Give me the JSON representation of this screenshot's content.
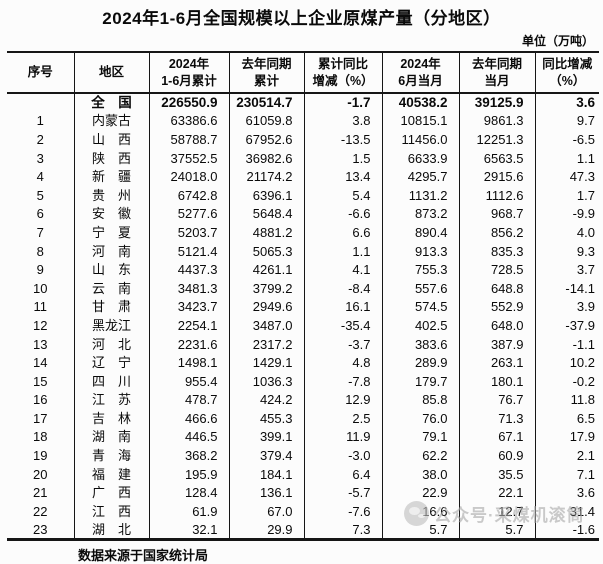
{
  "page": {
    "title": "2024年1-6月全国规模以上企业原煤产量（分地区）",
    "unit_label": "单位（万吨）",
    "source_note": "数据来源于国家统计局"
  },
  "watermark": {
    "icon": "official-account-badge-icon",
    "text": "公众号·采煤机滚筒"
  },
  "table": {
    "headers": [
      "序号",
      "地区",
      "2024年\n1-6月累计",
      "去年同期\n累计",
      "累计同比\n增减（%）",
      "2024年\n6月当月",
      "去年同期\n当月",
      "同比增减\n（%）"
    ],
    "total_row": {
      "no": "",
      "region": "全　国",
      "ytd_2024": "226550.9",
      "ytd_prev": "230514.7",
      "ytd_yoy": "-1.7",
      "jun_2024": "40538.2",
      "jun_prev": "39125.9",
      "jun_yoy": "3.6"
    },
    "rows": [
      {
        "no": "1",
        "region": "内蒙古",
        "ytd_2024": "63386.6",
        "ytd_prev": "61059.8",
        "ytd_yoy": "3.8",
        "jun_2024": "10815.1",
        "jun_prev": "9861.3",
        "jun_yoy": "9.7"
      },
      {
        "no": "2",
        "region": "山　西",
        "ytd_2024": "58788.7",
        "ytd_prev": "67952.6",
        "ytd_yoy": "-13.5",
        "jun_2024": "11456.0",
        "jun_prev": "12251.3",
        "jun_yoy": "-6.5"
      },
      {
        "no": "3",
        "region": "陕　西",
        "ytd_2024": "37552.5",
        "ytd_prev": "36982.6",
        "ytd_yoy": "1.5",
        "jun_2024": "6633.9",
        "jun_prev": "6563.5",
        "jun_yoy": "1.1"
      },
      {
        "no": "4",
        "region": "新　疆",
        "ytd_2024": "24018.0",
        "ytd_prev": "21174.2",
        "ytd_yoy": "13.4",
        "jun_2024": "4295.7",
        "jun_prev": "2915.6",
        "jun_yoy": "47.3"
      },
      {
        "no": "5",
        "region": "贵　州",
        "ytd_2024": "6742.8",
        "ytd_prev": "6396.1",
        "ytd_yoy": "5.4",
        "jun_2024": "1131.2",
        "jun_prev": "1112.6",
        "jun_yoy": "1.7"
      },
      {
        "no": "6",
        "region": "安　徽",
        "ytd_2024": "5277.6",
        "ytd_prev": "5648.4",
        "ytd_yoy": "-6.6",
        "jun_2024": "873.2",
        "jun_prev": "968.7",
        "jun_yoy": "-9.9"
      },
      {
        "no": "7",
        "region": "宁　夏",
        "ytd_2024": "5203.7",
        "ytd_prev": "4881.2",
        "ytd_yoy": "6.6",
        "jun_2024": "890.4",
        "jun_prev": "856.2",
        "jun_yoy": "4.0"
      },
      {
        "no": "8",
        "region": "河　南",
        "ytd_2024": "5121.4",
        "ytd_prev": "5065.3",
        "ytd_yoy": "1.1",
        "jun_2024": "913.3",
        "jun_prev": "835.3",
        "jun_yoy": "9.3"
      },
      {
        "no": "9",
        "region": "山　东",
        "ytd_2024": "4437.3",
        "ytd_prev": "4261.1",
        "ytd_yoy": "4.1",
        "jun_2024": "755.3",
        "jun_prev": "728.5",
        "jun_yoy": "3.7"
      },
      {
        "no": "10",
        "region": "云　南",
        "ytd_2024": "3481.3",
        "ytd_prev": "3799.2",
        "ytd_yoy": "-8.4",
        "jun_2024": "557.6",
        "jun_prev": "648.8",
        "jun_yoy": "-14.1"
      },
      {
        "no": "11",
        "region": "甘　肃",
        "ytd_2024": "3423.7",
        "ytd_prev": "2949.6",
        "ytd_yoy": "16.1",
        "jun_2024": "574.5",
        "jun_prev": "552.9",
        "jun_yoy": "3.9"
      },
      {
        "no": "12",
        "region": "黑龙江",
        "ytd_2024": "2254.1",
        "ytd_prev": "3487.0",
        "ytd_yoy": "-35.4",
        "jun_2024": "402.5",
        "jun_prev": "648.0",
        "jun_yoy": "-37.9"
      },
      {
        "no": "13",
        "region": "河　北",
        "ytd_2024": "2231.6",
        "ytd_prev": "2317.2",
        "ytd_yoy": "-3.7",
        "jun_2024": "383.6",
        "jun_prev": "387.9",
        "jun_yoy": "-1.1"
      },
      {
        "no": "14",
        "region": "辽　宁",
        "ytd_2024": "1498.1",
        "ytd_prev": "1429.1",
        "ytd_yoy": "4.8",
        "jun_2024": "289.9",
        "jun_prev": "263.1",
        "jun_yoy": "10.2"
      },
      {
        "no": "15",
        "region": "四　川",
        "ytd_2024": "955.4",
        "ytd_prev": "1036.3",
        "ytd_yoy": "-7.8",
        "jun_2024": "179.7",
        "jun_prev": "180.1",
        "jun_yoy": "-0.2"
      },
      {
        "no": "16",
        "region": "江　苏",
        "ytd_2024": "478.7",
        "ytd_prev": "424.2",
        "ytd_yoy": "12.9",
        "jun_2024": "85.8",
        "jun_prev": "76.7",
        "jun_yoy": "11.8"
      },
      {
        "no": "17",
        "region": "吉　林",
        "ytd_2024": "466.6",
        "ytd_prev": "455.3",
        "ytd_yoy": "2.5",
        "jun_2024": "76.0",
        "jun_prev": "71.3",
        "jun_yoy": "6.5"
      },
      {
        "no": "18",
        "region": "湖　南",
        "ytd_2024": "446.5",
        "ytd_prev": "399.1",
        "ytd_yoy": "11.9",
        "jun_2024": "79.1",
        "jun_prev": "67.1",
        "jun_yoy": "17.9"
      },
      {
        "no": "19",
        "region": "青　海",
        "ytd_2024": "368.2",
        "ytd_prev": "379.4",
        "ytd_yoy": "-3.0",
        "jun_2024": "62.2",
        "jun_prev": "60.9",
        "jun_yoy": "2.1"
      },
      {
        "no": "20",
        "region": "福　建",
        "ytd_2024": "195.9",
        "ytd_prev": "184.1",
        "ytd_yoy": "6.4",
        "jun_2024": "38.0",
        "jun_prev": "35.5",
        "jun_yoy": "7.1"
      },
      {
        "no": "21",
        "region": "广　西",
        "ytd_2024": "128.4",
        "ytd_prev": "136.1",
        "ytd_yoy": "-5.7",
        "jun_2024": "22.9",
        "jun_prev": "22.1",
        "jun_yoy": "3.6"
      },
      {
        "no": "22",
        "region": "江　西",
        "ytd_2024": "61.9",
        "ytd_prev": "67.0",
        "ytd_yoy": "-7.6",
        "jun_2024": "16.6",
        "jun_prev": "12.7",
        "jun_yoy": "31.4"
      },
      {
        "no": "23",
        "region": "湖　北",
        "ytd_2024": "32.1",
        "ytd_prev": "29.9",
        "ytd_yoy": "7.3",
        "jun_2024": "5.7",
        "jun_prev": "5.7",
        "jun_yoy": "-1.6"
      }
    ]
  }
}
